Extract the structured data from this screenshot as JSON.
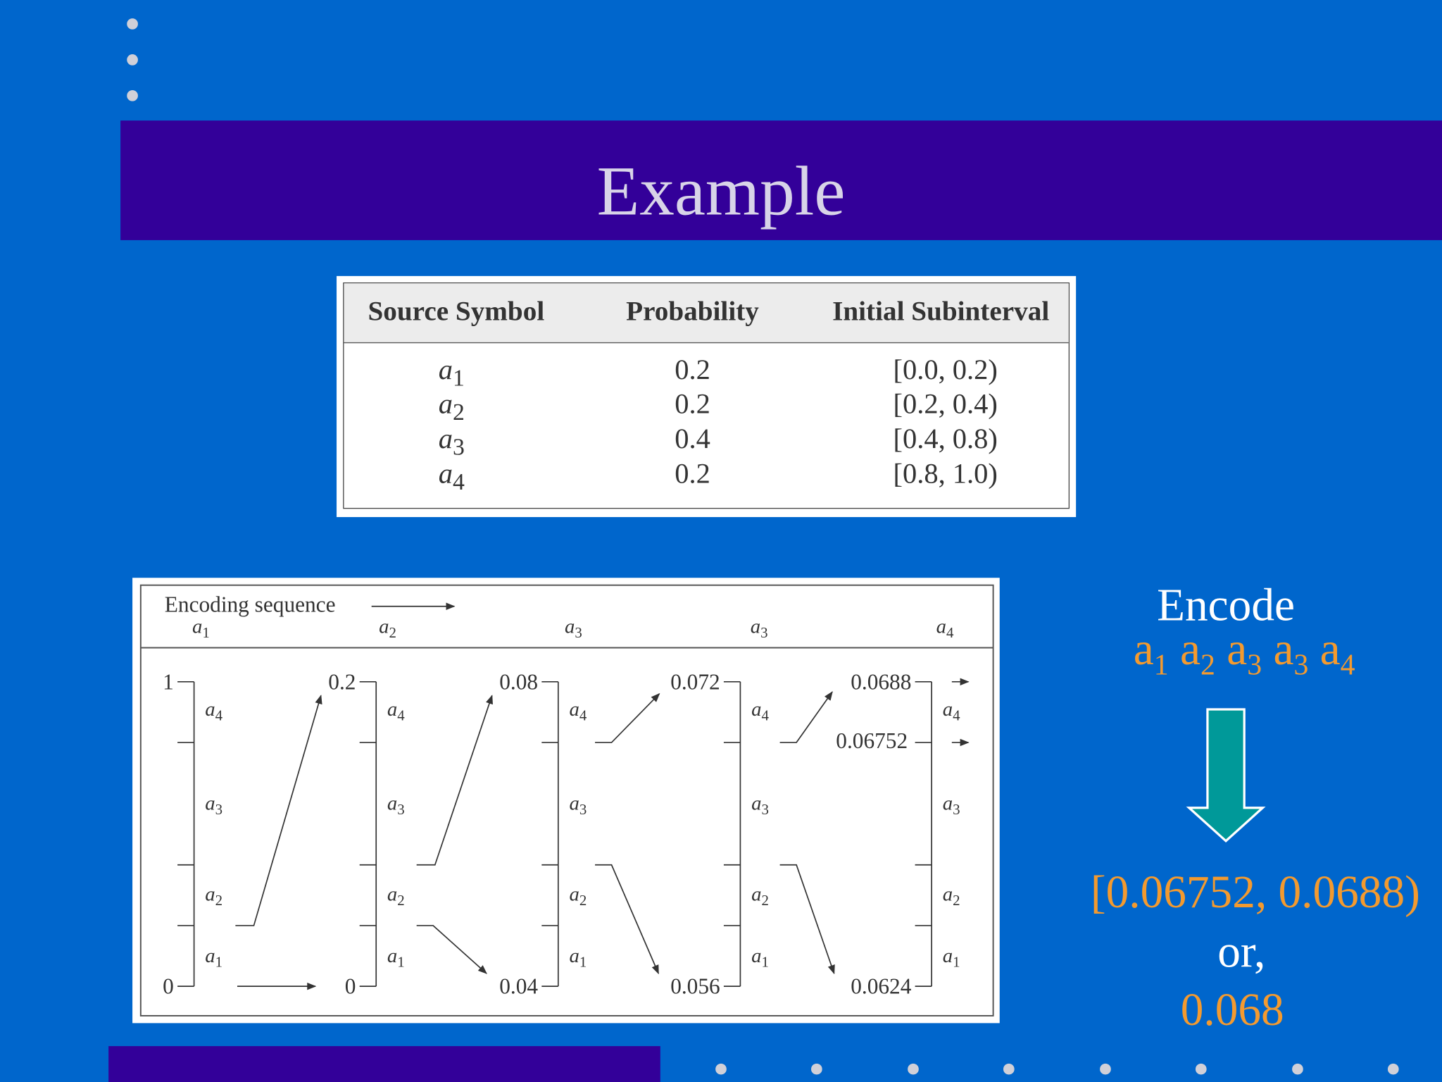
{
  "title": "Example",
  "table": {
    "headers": [
      "Source Symbol",
      "Probability",
      "Initial Subinterval"
    ],
    "rows": [
      {
        "symbol": {
          "base": "a",
          "sub": "1"
        },
        "probability": "0.2",
        "subinterval": "[0.0, 0.2)"
      },
      {
        "symbol": {
          "base": "a",
          "sub": "2"
        },
        "probability": "0.2",
        "subinterval": "[0.2, 0.4)"
      },
      {
        "symbol": {
          "base": "a",
          "sub": "3"
        },
        "probability": "0.4",
        "subinterval": "[0.4, 0.8)"
      },
      {
        "symbol": {
          "base": "a",
          "sub": "4"
        },
        "probability": "0.2",
        "subinterval": "[0.8, 1.0)"
      }
    ]
  },
  "diagram": {
    "heading": "Encoding sequence",
    "sequence": [
      {
        "base": "a",
        "sub": "1"
      },
      {
        "base": "a",
        "sub": "2"
      },
      {
        "base": "a",
        "sub": "3"
      },
      {
        "base": "a",
        "sub": "3"
      },
      {
        "base": "a",
        "sub": "4"
      }
    ],
    "axes": [
      {
        "top": "1",
        "bottom": "0"
      },
      {
        "top": "0.2",
        "bottom": "0"
      },
      {
        "top": "0.08",
        "bottom": "0.04"
      },
      {
        "top": "0.072",
        "bottom": "0.056"
      },
      {
        "top": "0.0688",
        "bottom": "0.0624",
        "marker": "0.06752"
      }
    ],
    "segment_labels": [
      {
        "base": "a",
        "sub": "4"
      },
      {
        "base": "a",
        "sub": "3"
      },
      {
        "base": "a",
        "sub": "2"
      },
      {
        "base": "a",
        "sub": "1"
      }
    ]
  },
  "encode": {
    "label": "Encode",
    "sequence": [
      {
        "base": "a",
        "sub": "1"
      },
      {
        "base": "a",
        "sub": "2"
      },
      {
        "base": "a",
        "sub": "3"
      },
      {
        "base": "a",
        "sub": "3"
      },
      {
        "base": "a",
        "sub": "4"
      }
    ],
    "interval": "[0.06752, 0.0688)",
    "or": "or,",
    "value": "0.068",
    "arrow_icon": "down-arrow"
  },
  "colors": {
    "background": "#0066cc",
    "band": "#330099",
    "accent": "#f39a2f",
    "arrow": "#009999"
  }
}
